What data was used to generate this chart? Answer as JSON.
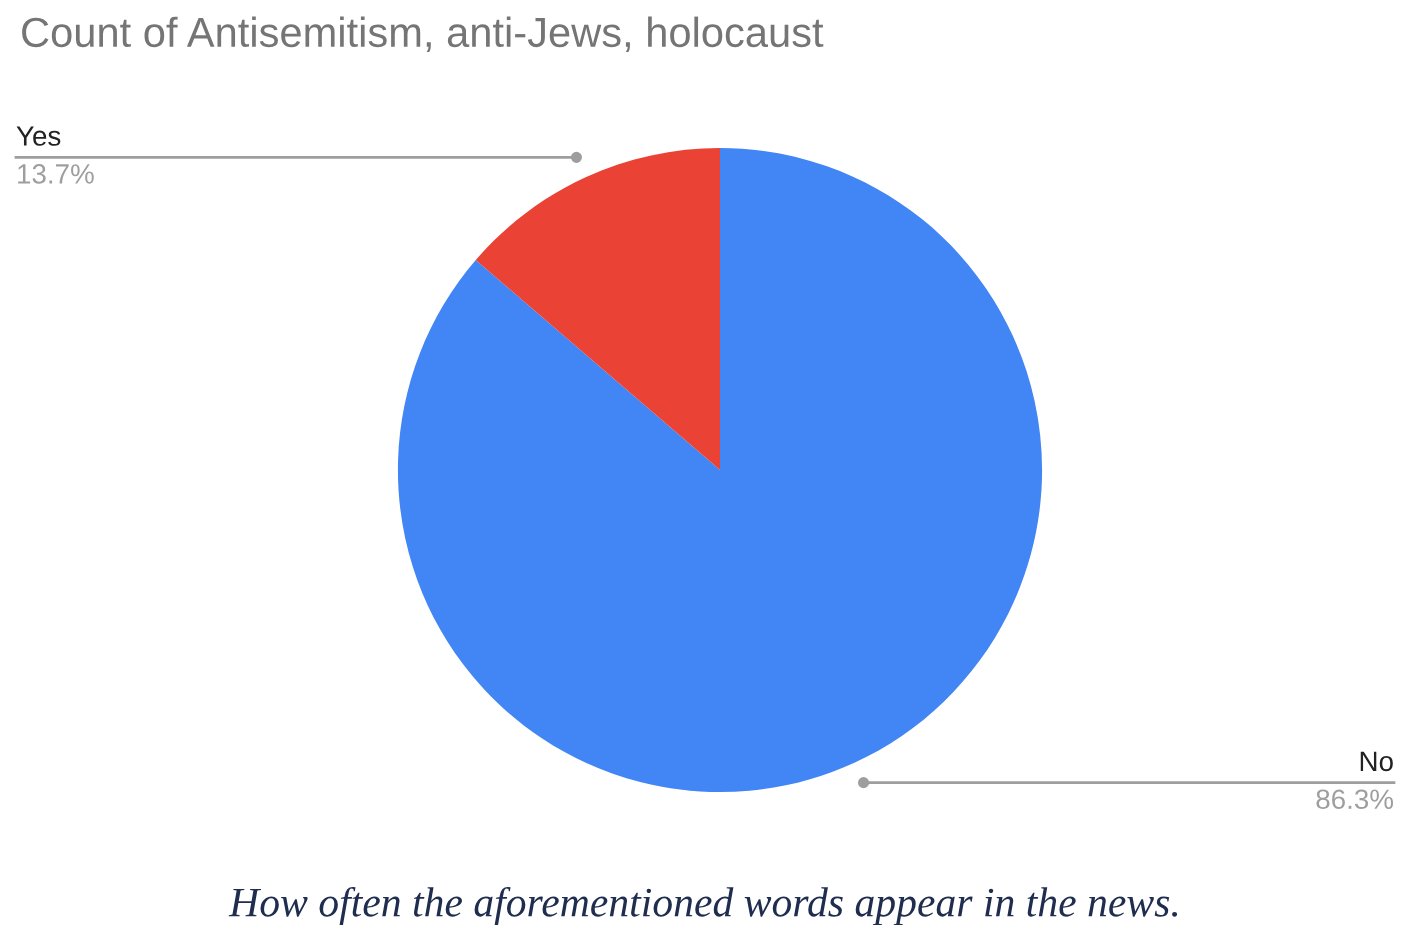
{
  "chart_data": {
    "type": "pie",
    "title": "Count of Antisemitism, anti-Jews, holocaust",
    "categories": [
      "No",
      "Yes"
    ],
    "values": [
      86.3,
      13.7
    ],
    "colors": [
      "#4285f4",
      "#ea4335"
    ],
    "value_labels": [
      "86.3%",
      "13.7%"
    ],
    "legend": false,
    "annotations": [
      "How often the aforementioned words appear in the news."
    ]
  }
}
